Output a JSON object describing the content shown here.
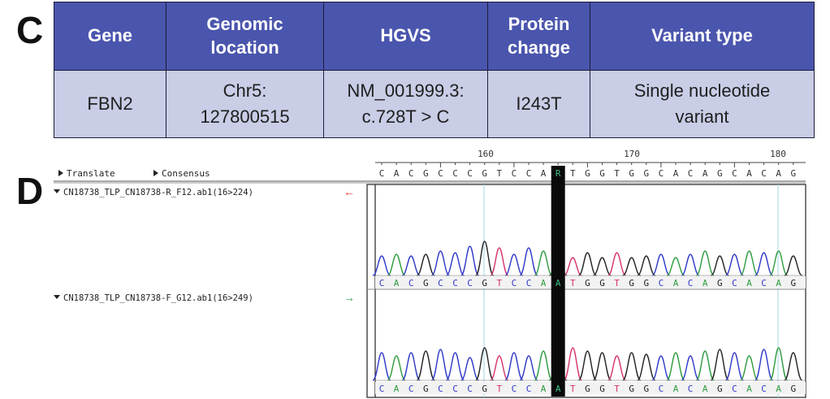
{
  "panel_c": {
    "letter": "C",
    "headers": [
      [
        "Gene"
      ],
      [
        "Genomic",
        "location"
      ],
      [
        "HGVS"
      ],
      [
        "Protein",
        "change"
      ],
      [
        "Variant type"
      ]
    ],
    "row": [
      [
        "FBN2"
      ],
      [
        "Chr5:",
        "127800515"
      ],
      [
        "NM_001999.3:",
        "c.728T > C"
      ],
      [
        "I243T"
      ],
      [
        "Single nucleotide",
        "variant"
      ]
    ]
  },
  "panel_d": {
    "letter": "D",
    "ruler_labels": [
      "160",
      "170",
      "180"
    ],
    "translate_label": "Translate",
    "consensus_label": "Consensus",
    "consensus_sequence": "CACGCCCGTCCARTGGTGGCACAGCACAG",
    "read_sequence": "CACGCCCGTCCAATGGTGGCACAGCACAG",
    "highlight_index": 12,
    "traces": [
      {
        "name": "CN18738_TLP_CN18738-R_F12.ab1(16>224)",
        "arrow": "←",
        "arrow_color": "#e0402a"
      },
      {
        "name": "CN18738_TLP_CN18738-F_G12.ab1(16>249)",
        "arrow": "→",
        "arrow_color": "#2ea84a"
      }
    ],
    "base_colors": {
      "A": "#2e9b3e",
      "C": "#2f38c8",
      "G": "#222222",
      "T": "#d6336c"
    }
  }
}
